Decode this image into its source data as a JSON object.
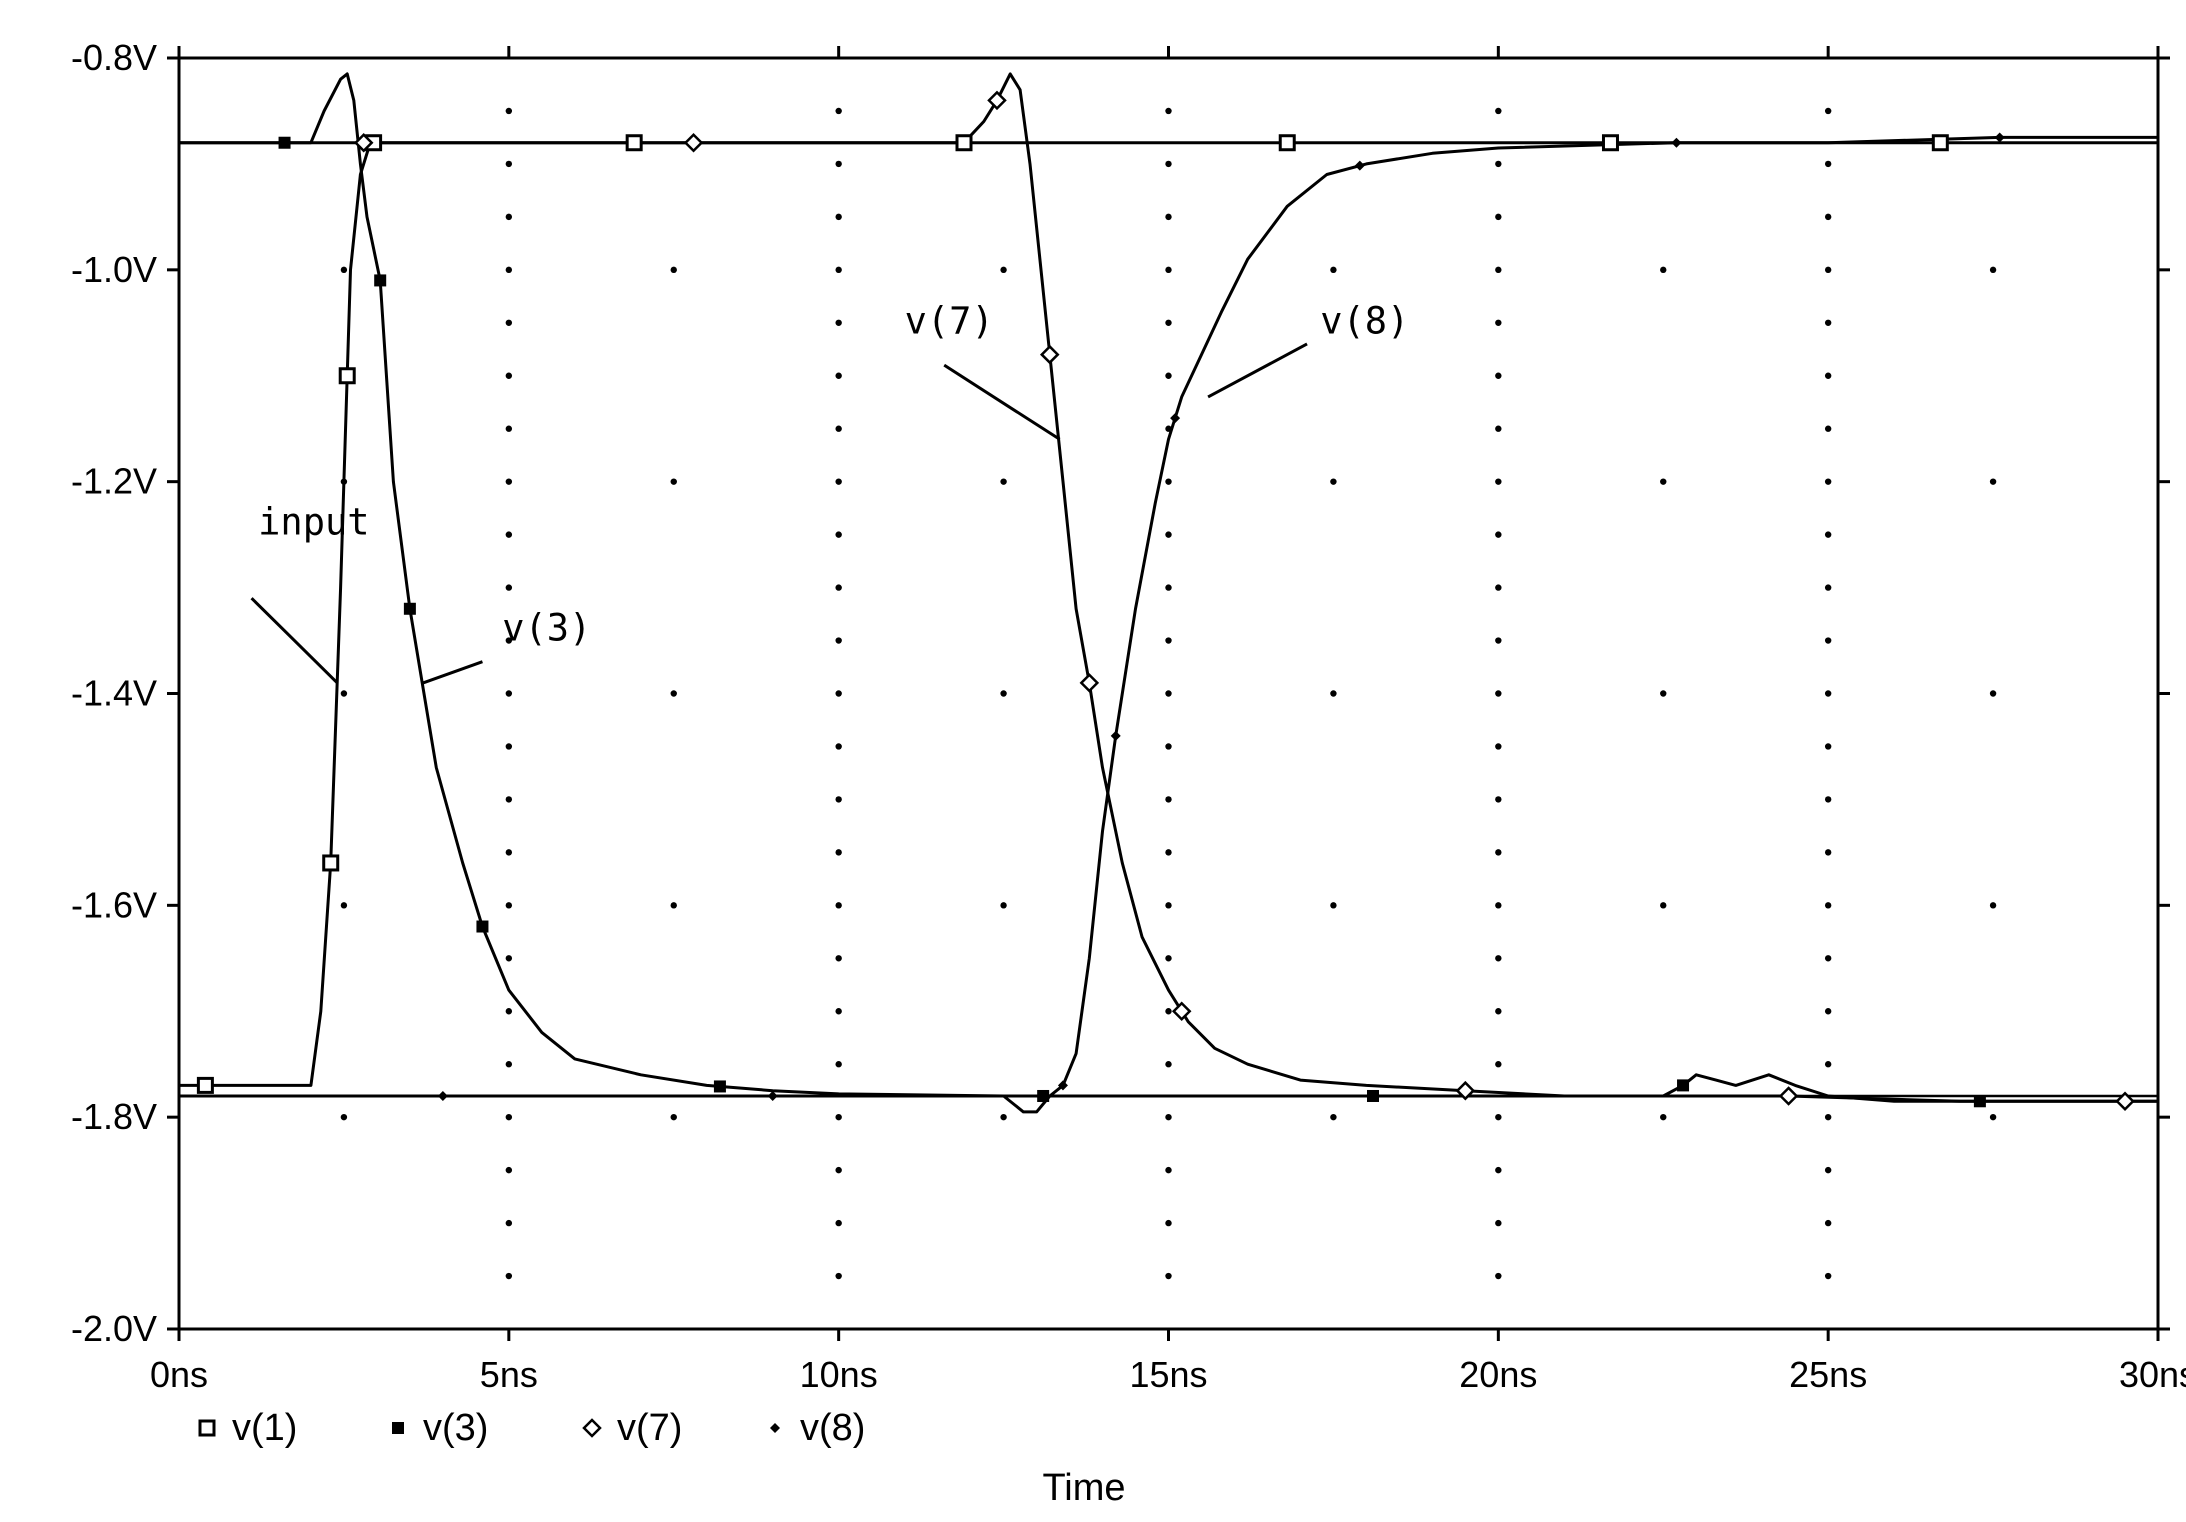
{
  "chart_data": {
    "type": "line",
    "title": "",
    "xlabel": "Time",
    "ylabel": "",
    "xlim": [
      0,
      30
    ],
    "ylim": [
      -2.0,
      -0.8
    ],
    "x_unit": "ns",
    "y_unit": "V",
    "x_ticks": [
      "0ns",
      "5ns",
      "10ns",
      "15ns",
      "20ns",
      "25ns",
      "30ns"
    ],
    "y_ticks": [
      "-0.8V",
      "-1.0V",
      "-1.2V",
      "-1.4V",
      "-1.6V",
      "-1.8V",
      "-2.0V"
    ],
    "grid": "dotted",
    "legend_position": "bottom-left",
    "reference_levels": [
      -0.88,
      -1.78
    ],
    "series": [
      {
        "name": "v(1)",
        "marker": "open-square",
        "x": [
          0,
          0.4,
          2.0,
          2.15,
          2.3,
          2.45,
          2.6,
          2.75,
          2.9,
          3.0,
          3.1,
          3.3,
          5,
          7,
          10,
          12,
          15,
          17,
          20,
          22,
          25,
          27,
          30
        ],
        "y": [
          -1.77,
          -1.77,
          -1.77,
          -1.7,
          -1.56,
          -1.3,
          -1.0,
          -0.91,
          -0.88,
          -0.88,
          -0.88,
          -0.88,
          -0.88,
          -0.88,
          -0.88,
          -0.88,
          -0.88,
          -0.88,
          -0.88,
          -0.88,
          -0.88,
          -0.88,
          -0.88
        ],
        "marker_x": [
          0.4,
          2.3,
          2.55,
          2.95,
          6.9,
          11.9,
          16.8,
          21.7,
          26.7
        ]
      },
      {
        "name": "v(3)",
        "marker": "filled-square",
        "x": [
          0,
          2.0,
          2.2,
          2.45,
          2.55,
          2.65,
          2.75,
          2.85,
          2.95,
          3.05,
          3.25,
          3.5,
          3.9,
          4.3,
          4.6,
          5.0,
          5.5,
          6.0,
          7.0,
          8.0,
          9.0,
          10.0,
          12.5,
          13.0,
          13.5,
          18.0,
          22.0,
          22.5,
          22.8,
          23.0,
          23.3,
          23.6,
          24.1,
          24.5,
          25.0,
          26.0,
          27.0,
          28.0,
          30.0
        ],
        "y": [
          -0.88,
          -0.88,
          -0.85,
          -0.82,
          -0.815,
          -0.84,
          -0.9,
          -0.95,
          -0.98,
          -1.01,
          -1.2,
          -1.32,
          -1.47,
          -1.56,
          -1.62,
          -1.68,
          -1.72,
          -1.745,
          -1.76,
          -1.77,
          -1.775,
          -1.778,
          -1.78,
          -1.78,
          -1.78,
          -1.78,
          -1.78,
          -1.78,
          -1.77,
          -1.76,
          -1.765,
          -1.77,
          -1.76,
          -1.77,
          -1.78,
          -1.785,
          -1.785,
          -1.785,
          -1.785
        ],
        "marker_x": [
          1.6,
          3.05,
          3.5,
          4.6,
          8.2,
          13.1,
          18.1,
          22.8,
          27.3
        ]
      },
      {
        "name": "v(7)",
        "marker": "open-diamond",
        "x": [
          0,
          2.8,
          5,
          7.8,
          10,
          11.9,
          12.2,
          12.4,
          12.6,
          12.75,
          12.9,
          13.05,
          13.2,
          13.4,
          13.6,
          13.8,
          14.0,
          14.3,
          14.6,
          15.0,
          15.3,
          15.7,
          16.2,
          17.0,
          18.0,
          19.5,
          21,
          24.4,
          27,
          29.5,
          30
        ],
        "y": [
          -0.88,
          -0.88,
          -0.88,
          -0.88,
          -0.88,
          -0.88,
          -0.86,
          -0.84,
          -0.815,
          -0.83,
          -0.9,
          -0.99,
          -1.08,
          -1.2,
          -1.32,
          -1.39,
          -1.47,
          -1.56,
          -1.63,
          -1.68,
          -1.71,
          -1.735,
          -1.75,
          -1.765,
          -1.77,
          -1.775,
          -1.78,
          -1.78,
          -1.785,
          -1.785,
          -1.785
        ],
        "marker_x": [
          2.8,
          7.8,
          12.4,
          13.2,
          13.8,
          15.2,
          19.5,
          24.4,
          29.5
        ]
      },
      {
        "name": "v(8)",
        "marker": "filled-diamond",
        "x": [
          0,
          4.0,
          9.0,
          12.5,
          12.8,
          13.0,
          13.2,
          13.4,
          13.6,
          13.8,
          14.0,
          14.2,
          14.5,
          14.8,
          15.0,
          15.2,
          15.5,
          15.8,
          16.2,
          16.8,
          17.4,
          18.0,
          19.0,
          20.0,
          22.7,
          25.0,
          27.6,
          30.0
        ],
        "y": [
          -1.78,
          -1.78,
          -1.78,
          -1.78,
          -1.795,
          -1.795,
          -1.78,
          -1.77,
          -1.74,
          -1.65,
          -1.53,
          -1.44,
          -1.32,
          -1.22,
          -1.16,
          -1.12,
          -1.08,
          -1.04,
          -0.99,
          -0.94,
          -0.91,
          -0.9,
          -0.89,
          -0.885,
          -0.88,
          -0.88,
          -0.875,
          -0.875
        ],
        "marker_x": [
          4.0,
          9.0,
          13.4,
          14.2,
          15.1,
          17.9,
          22.7,
          27.6
        ]
      }
    ],
    "annotations": [
      {
        "text": "input",
        "label_x": 1.2,
        "label_y": -1.25,
        "leader": [
          [
            1.1,
            -1.31
          ],
          [
            2.4,
            -1.39
          ]
        ]
      },
      {
        "text": "v(3)",
        "label_x": 4.9,
        "label_y": -1.35,
        "leader": [
          [
            4.6,
            -1.37
          ],
          [
            3.7,
            -1.39
          ]
        ]
      },
      {
        "text": "v(7)",
        "label_x": 11.0,
        "label_y": -1.06,
        "leader": [
          [
            11.6,
            -1.09
          ],
          [
            13.35,
            -1.16
          ]
        ]
      },
      {
        "text": "v(8)",
        "label_x": 17.3,
        "label_y": -1.06,
        "leader": [
          [
            17.1,
            -1.07
          ],
          [
            15.6,
            -1.12
          ]
        ]
      }
    ]
  }
}
